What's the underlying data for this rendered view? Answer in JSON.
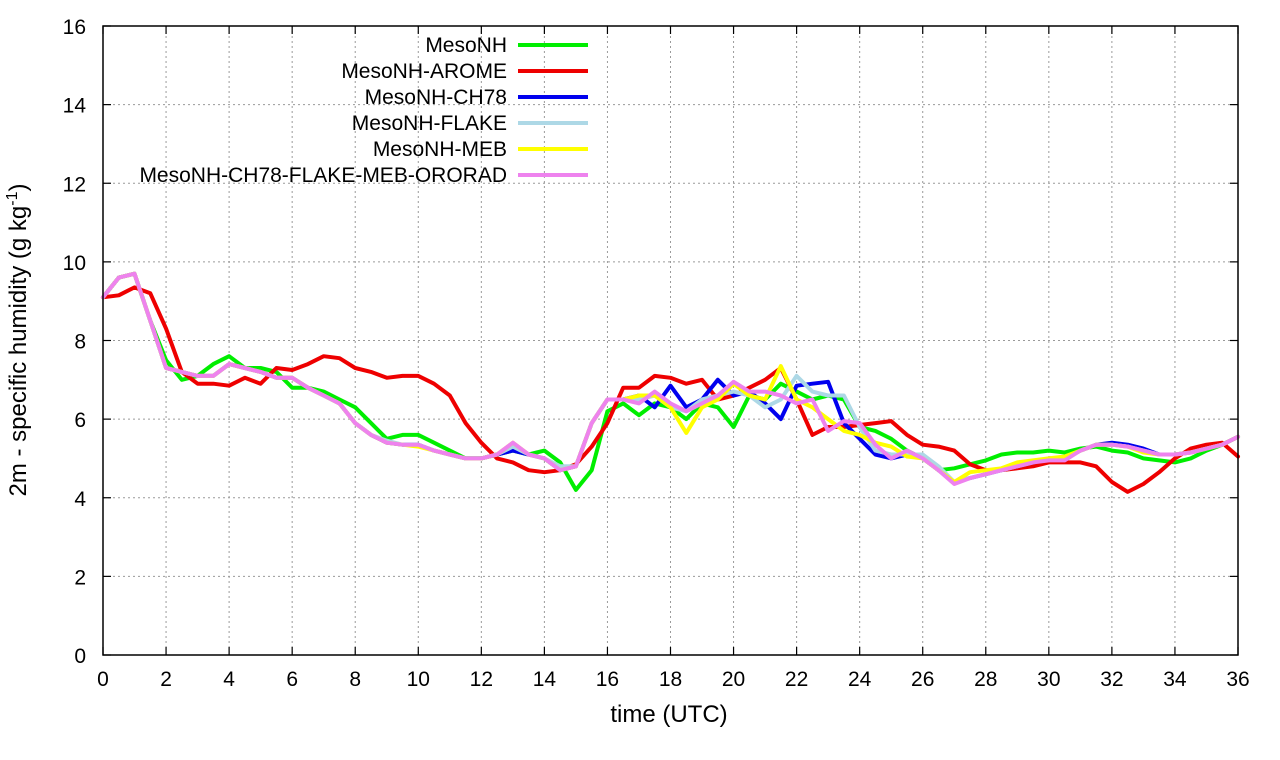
{
  "chart_data": {
    "type": "line",
    "xlabel": "time (UTC)",
    "ylabel_main": "2m - specific humidity (g kg",
    "ylabel_sup": "-1",
    "ylabel_end": ")",
    "xlim": [
      0,
      36
    ],
    "ylim": [
      0,
      16
    ],
    "xticks": [
      0,
      2,
      4,
      6,
      8,
      10,
      12,
      14,
      16,
      18,
      20,
      22,
      24,
      26,
      28,
      30,
      32,
      34,
      36
    ],
    "yticks": [
      0,
      2,
      4,
      6,
      8,
      10,
      12,
      14,
      16
    ],
    "grid": true,
    "legend_position": "top-left",
    "series": [
      {
        "name": "MesoNH",
        "color": "#00ee00",
        "x": [
          0,
          0.5,
          1,
          1.5,
          2,
          2.5,
          3,
          3.5,
          4,
          4.5,
          5,
          5.5,
          6,
          6.5,
          7,
          7.5,
          8,
          8.5,
          9,
          9.5,
          10,
          10.5,
          11,
          11.5,
          12,
          12.5,
          13,
          13.5,
          14,
          14.5,
          15,
          15.5,
          16,
          16.5,
          17,
          17.5,
          18,
          18.5,
          19,
          19.5,
          20,
          20.5,
          21,
          21.5,
          22,
          22.5,
          23,
          23.5,
          24,
          24.5,
          25,
          25.5,
          26,
          26.5,
          27,
          27.5,
          28,
          28.5,
          29,
          29.5,
          30,
          30.5,
          31,
          31.5,
          32,
          32.5,
          33,
          33.5,
          34,
          34.5,
          35,
          35.5,
          36
        ],
        "values": [
          9.1,
          9.6,
          9.7,
          8.5,
          7.5,
          7.0,
          7.1,
          7.4,
          7.6,
          7.3,
          7.3,
          7.2,
          6.8,
          6.8,
          6.7,
          6.5,
          6.3,
          5.9,
          5.5,
          5.6,
          5.6,
          5.4,
          5.2,
          5.0,
          5.0,
          5.1,
          5.2,
          5.1,
          5.2,
          4.9,
          4.2,
          4.7,
          6.2,
          6.4,
          6.1,
          6.4,
          6.3,
          6.0,
          6.4,
          6.3,
          5.8,
          6.6,
          6.5,
          6.9,
          6.7,
          6.5,
          6.6,
          6.5,
          5.8,
          5.7,
          5.5,
          5.2,
          5.0,
          4.7,
          4.75,
          4.85,
          4.95,
          5.1,
          5.15,
          5.15,
          5.2,
          5.15,
          5.25,
          5.3,
          5.2,
          5.15,
          5.0,
          4.95,
          4.9,
          5.0,
          5.2,
          5.35,
          5.55
        ]
      },
      {
        "name": "MesoNH-AROME",
        "color": "#ee0000",
        "x": [
          0,
          0.5,
          1,
          1.5,
          2,
          2.5,
          3,
          3.5,
          4,
          4.5,
          5,
          5.5,
          6,
          6.5,
          7,
          7.5,
          8,
          8.5,
          9,
          9.5,
          10,
          10.5,
          11,
          11.5,
          12,
          12.5,
          13,
          13.5,
          14,
          14.5,
          15,
          15.5,
          16,
          16.5,
          17,
          17.5,
          18,
          18.5,
          19,
          19.5,
          20,
          20.5,
          21,
          21.5,
          22,
          22.5,
          23,
          23.5,
          24,
          24.5,
          25,
          25.5,
          26,
          26.5,
          27,
          27.5,
          28,
          28.5,
          29,
          29.5,
          30,
          30.5,
          31,
          31.5,
          32,
          32.5,
          33,
          33.5,
          34,
          34.5,
          35,
          35.5,
          36
        ],
        "values": [
          9.1,
          9.15,
          9.35,
          9.2,
          8.3,
          7.2,
          6.9,
          6.9,
          6.85,
          7.05,
          6.9,
          7.3,
          7.25,
          7.4,
          7.6,
          7.55,
          7.3,
          7.2,
          7.05,
          7.1,
          7.1,
          6.9,
          6.6,
          5.9,
          5.4,
          5.0,
          4.9,
          4.7,
          4.65,
          4.7,
          4.85,
          5.3,
          5.9,
          6.8,
          6.8,
          7.1,
          7.05,
          6.9,
          7.0,
          6.5,
          6.6,
          6.8,
          7.0,
          7.3,
          6.5,
          5.6,
          5.8,
          5.8,
          5.85,
          5.9,
          5.95,
          5.6,
          5.35,
          5.3,
          5.2,
          4.85,
          4.7,
          4.7,
          4.75,
          4.8,
          4.9,
          4.9,
          4.9,
          4.8,
          4.4,
          4.15,
          4.35,
          4.65,
          5.0,
          5.25,
          5.35,
          5.4,
          5.05
        ]
      },
      {
        "name": "MesoNH-CH78",
        "color": "#0000ee",
        "x": [
          0,
          0.5,
          1,
          1.5,
          2,
          2.5,
          3,
          3.5,
          4,
          4.5,
          5,
          5.5,
          6,
          6.5,
          7,
          7.5,
          8,
          8.5,
          9,
          9.5,
          10,
          10.5,
          11,
          11.5,
          12,
          12.5,
          13,
          13.5,
          14,
          14.5,
          15,
          15.5,
          16,
          16.5,
          17,
          17.5,
          18,
          18.5,
          19,
          19.5,
          20,
          20.5,
          21,
          21.5,
          22,
          22.5,
          23,
          23.5,
          24,
          24.5,
          25,
          25.5,
          26,
          26.5,
          27,
          27.5,
          28,
          28.5,
          29,
          29.5,
          30,
          30.5,
          31,
          31.5,
          32,
          32.5,
          33,
          33.5,
          34,
          34.5,
          35,
          35.5,
          36
        ],
        "values": [
          9.1,
          9.6,
          9.7,
          8.5,
          7.3,
          7.2,
          7.1,
          7.1,
          7.4,
          7.3,
          7.2,
          7.05,
          7.05,
          6.8,
          6.6,
          6.4,
          5.9,
          5.6,
          5.4,
          5.35,
          5.35,
          5.2,
          5.1,
          5.0,
          5.0,
          5.1,
          5.2,
          5.1,
          5.0,
          4.7,
          4.8,
          5.9,
          6.5,
          6.5,
          6.6,
          6.3,
          6.85,
          6.3,
          6.5,
          7.0,
          6.6,
          6.7,
          6.4,
          6.0,
          6.85,
          6.9,
          6.95,
          5.9,
          5.5,
          5.1,
          5.0,
          5.1,
          5.05,
          4.7,
          4.4,
          4.5,
          4.6,
          4.7,
          4.8,
          4.9,
          5.0,
          5.0,
          5.2,
          5.35,
          5.4,
          5.35,
          5.25,
          5.1,
          5.1,
          5.15,
          5.25,
          5.35,
          5.55
        ]
      },
      {
        "name": "MesoNH-FLAKE",
        "color": "#add8e6",
        "x": [
          0,
          0.5,
          1,
          1.5,
          2,
          2.5,
          3,
          3.5,
          4,
          4.5,
          5,
          5.5,
          6,
          6.5,
          7,
          7.5,
          8,
          8.5,
          9,
          9.5,
          10,
          10.5,
          11,
          11.5,
          12,
          12.5,
          13,
          13.5,
          14,
          14.5,
          15,
          15.5,
          16,
          16.5,
          17,
          17.5,
          18,
          18.5,
          19,
          19.5,
          20,
          20.5,
          21,
          21.5,
          22,
          22.5,
          23,
          23.5,
          24,
          24.5,
          25,
          25.5,
          26,
          26.5,
          27,
          27.5,
          28,
          28.5,
          29,
          29.5,
          30,
          30.5,
          31,
          31.5,
          32,
          32.5,
          33,
          33.5,
          34,
          34.5,
          35,
          35.5,
          36
        ],
        "values": [
          9.1,
          9.6,
          9.7,
          8.5,
          7.3,
          7.2,
          7.1,
          7.1,
          7.4,
          7.3,
          7.2,
          7.05,
          7.05,
          6.8,
          6.6,
          6.4,
          5.9,
          5.6,
          5.45,
          5.35,
          5.35,
          5.2,
          5.1,
          5.0,
          5.0,
          5.1,
          5.3,
          5.1,
          5.0,
          4.8,
          4.8,
          5.9,
          6.5,
          6.5,
          6.5,
          6.6,
          6.3,
          6.2,
          6.5,
          6.6,
          6.7,
          6.6,
          6.3,
          6.5,
          7.1,
          6.7,
          6.6,
          6.6,
          5.8,
          5.2,
          5.1,
          5.1,
          5.1,
          4.8,
          4.4,
          4.5,
          4.6,
          4.7,
          4.8,
          4.9,
          5.0,
          5.0,
          5.2,
          5.35,
          5.35,
          5.3,
          5.2,
          5.1,
          5.1,
          5.15,
          5.25,
          5.35,
          5.55
        ]
      },
      {
        "name": "MesoNH-MEB",
        "color": "#ffff00",
        "x": [
          0,
          0.5,
          1,
          1.5,
          2,
          2.5,
          3,
          3.5,
          4,
          4.5,
          5,
          5.5,
          6,
          6.5,
          7,
          7.5,
          8,
          8.5,
          9,
          9.5,
          10,
          10.5,
          11,
          11.5,
          12,
          12.5,
          13,
          13.5,
          14,
          14.5,
          15,
          15.5,
          16,
          16.5,
          17,
          17.5,
          18,
          18.5,
          19,
          19.5,
          20,
          20.5,
          21,
          21.5,
          22,
          22.5,
          23,
          23.5,
          24,
          24.5,
          25,
          25.5,
          26,
          26.5,
          27,
          27.5,
          28,
          28.5,
          29,
          29.5,
          30,
          30.5,
          31,
          31.5,
          32,
          32.5,
          33,
          33.5,
          34,
          34.5,
          35,
          35.5,
          36
        ],
        "values": [
          9.1,
          9.6,
          9.7,
          8.5,
          7.3,
          7.2,
          7.1,
          7.1,
          7.4,
          7.3,
          7.2,
          7.05,
          7.05,
          6.8,
          6.6,
          6.4,
          5.9,
          5.6,
          5.4,
          5.35,
          5.3,
          5.2,
          5.1,
          5.0,
          5.0,
          5.1,
          5.4,
          5.1,
          5.0,
          4.7,
          4.8,
          5.9,
          6.5,
          6.5,
          6.6,
          6.6,
          6.3,
          5.65,
          6.3,
          6.5,
          6.9,
          6.6,
          6.5,
          7.35,
          6.5,
          6.3,
          6.0,
          5.7,
          5.6,
          5.4,
          5.3,
          5.05,
          5.0,
          4.7,
          4.4,
          4.65,
          4.7,
          4.75,
          4.9,
          4.95,
          5.0,
          5.05,
          5.2,
          5.35,
          5.35,
          5.3,
          5.15,
          5.1,
          5.1,
          5.15,
          5.25,
          5.35,
          5.55
        ]
      },
      {
        "name": "MesoNH-CH78-FLAKE-MEB-ORORAD",
        "color": "#ee82ee",
        "x": [
          0,
          0.5,
          1,
          1.5,
          2,
          2.5,
          3,
          3.5,
          4,
          4.5,
          5,
          5.5,
          6,
          6.5,
          7,
          7.5,
          8,
          8.5,
          9,
          9.5,
          10,
          10.5,
          11,
          11.5,
          12,
          12.5,
          13,
          13.5,
          14,
          14.5,
          15,
          15.5,
          16,
          16.5,
          17,
          17.5,
          18,
          18.5,
          19,
          19.5,
          20,
          20.5,
          21,
          21.5,
          22,
          22.5,
          23,
          23.5,
          24,
          24.5,
          25,
          25.5,
          26,
          26.5,
          27,
          27.5,
          28,
          28.5,
          29,
          29.5,
          30,
          30.5,
          31,
          31.5,
          32,
          32.5,
          33,
          33.5,
          34,
          34.5,
          35,
          35.5,
          36
        ],
        "values": [
          9.1,
          9.6,
          9.7,
          8.5,
          7.3,
          7.2,
          7.1,
          7.1,
          7.4,
          7.3,
          7.2,
          7.05,
          7.05,
          6.8,
          6.6,
          6.4,
          5.9,
          5.6,
          5.4,
          5.35,
          5.35,
          5.2,
          5.1,
          5.0,
          5.0,
          5.1,
          5.4,
          5.1,
          5.0,
          4.7,
          4.8,
          5.9,
          6.5,
          6.5,
          6.4,
          6.7,
          6.4,
          6.2,
          6.4,
          6.6,
          6.95,
          6.7,
          6.7,
          6.6,
          6.4,
          6.5,
          5.7,
          5.95,
          5.9,
          5.35,
          5.0,
          5.2,
          5.0,
          4.7,
          4.35,
          4.5,
          4.6,
          4.7,
          4.8,
          4.9,
          4.95,
          4.95,
          5.2,
          5.35,
          5.35,
          5.3,
          5.2,
          5.1,
          5.1,
          5.15,
          5.25,
          5.35,
          5.55
        ]
      }
    ]
  }
}
